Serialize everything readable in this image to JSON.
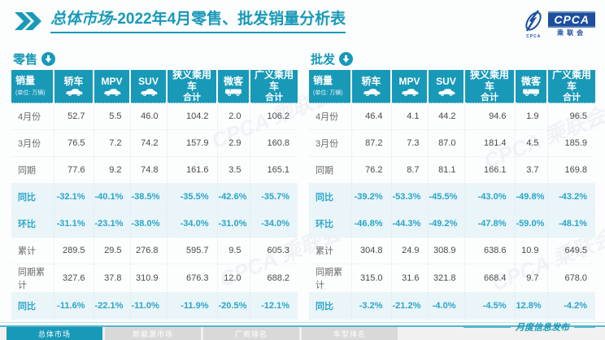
{
  "title": {
    "part1": "总体市场",
    "part2": "-2022年4月零售、批发销量分析表"
  },
  "logo": {
    "cpca": "CPCA",
    "name": "乘联会",
    "small": "CPCA"
  },
  "watermark": {
    "text": "CPCA 乘联会"
  },
  "header": {
    "first_label": "销量",
    "first_unit": "(单位: 万辆)",
    "cols": [
      {
        "line1": "轿车",
        "icon": "sedan-icon"
      },
      {
        "line1": "MPV",
        "icon": "mpv-icon"
      },
      {
        "line1": "SUV",
        "icon": "suv-icon"
      },
      {
        "line1": "狭义乘用车",
        "line2": "合计"
      },
      {
        "line1": "微客",
        "icon": "minibus-icon"
      },
      {
        "line1": "广义乘用车",
        "line2": "合计"
      }
    ]
  },
  "chart_data": [
    {
      "type": "table",
      "section_label": "零售",
      "unit": "万辆",
      "columns": [
        "轿车",
        "MPV",
        "SUV",
        "狭义乘用车合计",
        "微客",
        "广义乘用车合计"
      ],
      "rows": [
        {
          "label": "4月份",
          "type": "value",
          "values": [
            "52.7",
            "5.5",
            "46.0",
            "104.2",
            "2.0",
            "106.2"
          ]
        },
        {
          "label": "3月份",
          "type": "value",
          "values": [
            "76.5",
            "7.2",
            "74.2",
            "157.9",
            "2.9",
            "160.8"
          ]
        },
        {
          "label": "同期",
          "type": "value",
          "values": [
            "77.6",
            "9.2",
            "74.8",
            "161.6",
            "3.5",
            "165.1"
          ]
        },
        {
          "label": "同比",
          "type": "percent",
          "values": [
            "-32.1%",
            "-40.1%",
            "-38.5%",
            "-35.5%",
            "-42.6%",
            "-35.7%"
          ]
        },
        {
          "label": "环比",
          "type": "percent",
          "values": [
            "-31.1%",
            "-23.1%",
            "-38.0%",
            "-34.0%",
            "-31.0%",
            "-34.0%"
          ]
        },
        {
          "label": "累计",
          "type": "value",
          "values": [
            "289.5",
            "29.5",
            "276.8",
            "595.7",
            "9.5",
            "605.3"
          ]
        },
        {
          "label": "同期累计",
          "type": "value",
          "values": [
            "327.6",
            "37.8",
            "310.9",
            "676.3",
            "12.0",
            "688.2"
          ]
        },
        {
          "label": "同比",
          "type": "percent",
          "values": [
            "-11.6%",
            "-22.1%",
            "-11.0%",
            "-11.9%",
            "-20.5%",
            "-12.1%"
          ]
        }
      ]
    },
    {
      "type": "table",
      "section_label": "批发",
      "unit": "万辆",
      "columns": [
        "轿车",
        "MPV",
        "SUV",
        "狭义乘用车合计",
        "微客",
        "广义乘用车合计"
      ],
      "rows": [
        {
          "label": "4月份",
          "type": "value",
          "values": [
            "46.4",
            "4.1",
            "44.2",
            "94.6",
            "1.9",
            "96.5"
          ]
        },
        {
          "label": "3月份",
          "type": "value",
          "values": [
            "87.2",
            "7.3",
            "87.0",
            "181.4",
            "4.5",
            "185.9"
          ]
        },
        {
          "label": "同期",
          "type": "value",
          "values": [
            "76.2",
            "8.7",
            "81.1",
            "166.1",
            "3.7",
            "169.8"
          ]
        },
        {
          "label": "同比",
          "type": "percent",
          "values": [
            "-39.2%",
            "-53.3%",
            "-45.5%",
            "-43.0%",
            "-49.8%",
            "-43.2%"
          ]
        },
        {
          "label": "环比",
          "type": "percent",
          "values": [
            "-46.8%",
            "-44.3%",
            "-49.2%",
            "-47.8%",
            "-59.0%",
            "-48.1%"
          ]
        },
        {
          "label": "累计",
          "type": "value",
          "values": [
            "304.8",
            "24.9",
            "308.9",
            "638.6",
            "10.9",
            "649.5"
          ]
        },
        {
          "label": "同期累计",
          "type": "value",
          "values": [
            "315.0",
            "31.6",
            "321.8",
            "668.4",
            "9.7",
            "678.0"
          ]
        },
        {
          "label": "同比",
          "type": "percent",
          "values": [
            "-3.2%",
            "-21.2%",
            "-4.0%",
            "-4.5%",
            "12.8%",
            "-4.2%"
          ]
        }
      ]
    }
  ],
  "footer": {
    "tabs": [
      "总体市场",
      "新能源市场",
      "厂商排名",
      "车型排名"
    ],
    "active_tab": 0,
    "right_text": "月度信息发布"
  },
  "colors": {
    "accent": "#1899b8",
    "percent_text": "#2aa5c8",
    "percent_row_bg": "#e9f5f9",
    "header_bg": "#1899b8",
    "logo_blue": "#1d4f9e"
  }
}
